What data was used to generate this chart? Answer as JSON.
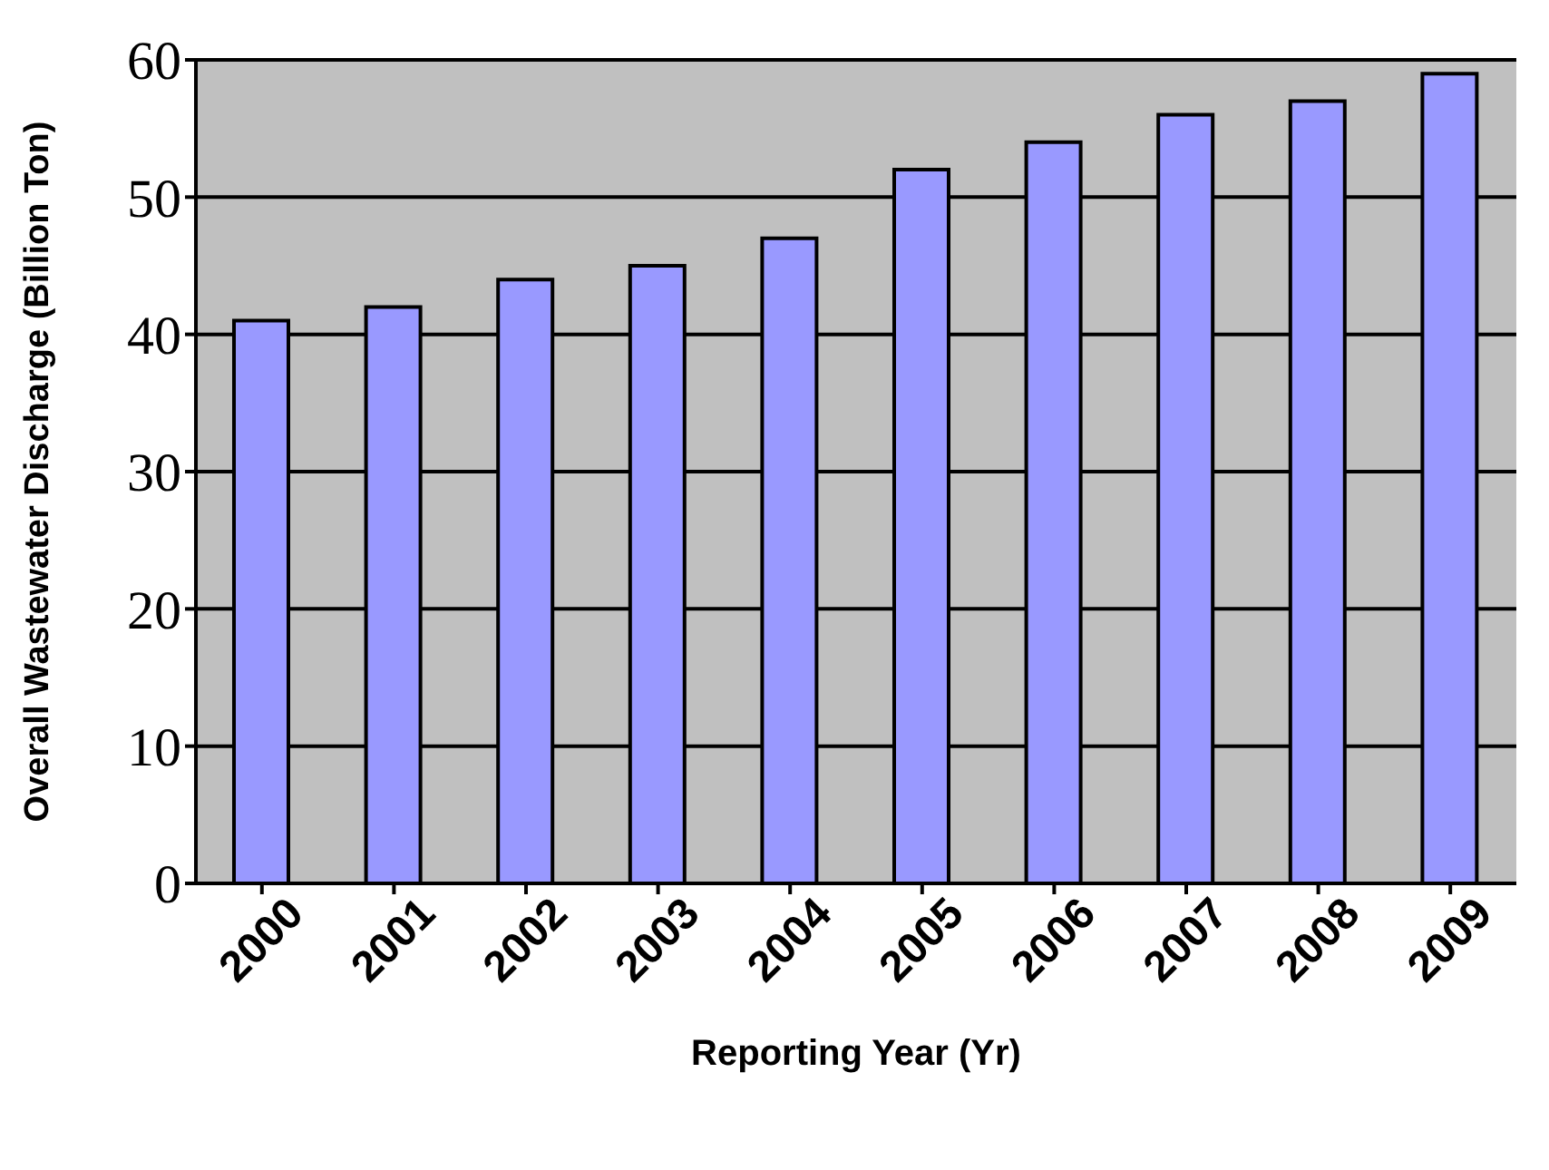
{
  "chart_data": {
    "type": "bar",
    "xlabel": "Reporting Year (Yr)",
    "ylabel": "Overall Wastewater Discharge (Billion Ton)",
    "categories": [
      "2000",
      "2001",
      "2002",
      "2003",
      "2004",
      "2005",
      "2006",
      "2007",
      "2008",
      "2009"
    ],
    "values": [
      41,
      42,
      44,
      45,
      47,
      52,
      54,
      56,
      57,
      59
    ],
    "color": "#9999ff",
    "ylim": [
      0,
      60
    ],
    "yticks": [
      0,
      10,
      20,
      30,
      40,
      50,
      60
    ],
    "grid": "y"
  }
}
